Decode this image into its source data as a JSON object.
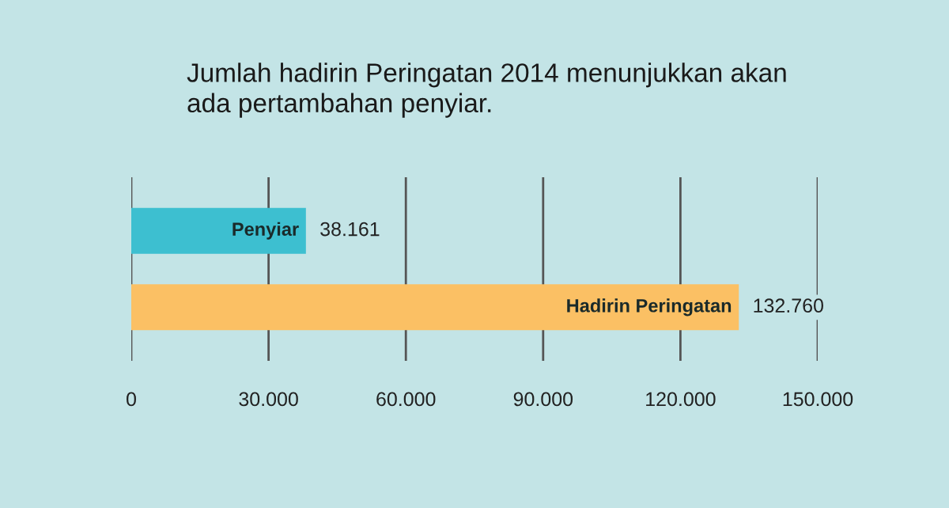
{
  "chart_data": {
    "type": "bar",
    "orientation": "horizontal",
    "title": "Jumlah hadirin Peringatan 2014 menunjukkan akan\nada pertambahan penyiar.",
    "categories": [
      "Penyiar",
      "Hadirin Peringatan"
    ],
    "values": [
      38161,
      132760
    ],
    "value_labels": [
      "38.161",
      "132.760"
    ],
    "colors": [
      "#3dbfd0",
      "#fbc064"
    ],
    "xlim": [
      0,
      150000
    ],
    "xticks": [
      0,
      {
        "value": 30000,
        "label": "30.000"
      },
      {
        "value": 60000,
        "label": "60.000"
      },
      {
        "value": 90000,
        "label": "90.000"
      },
      {
        "value": 120000,
        "label": "120.000"
      },
      {
        "value": 150000,
        "label": "150.000"
      }
    ],
    "grid": "x"
  }
}
